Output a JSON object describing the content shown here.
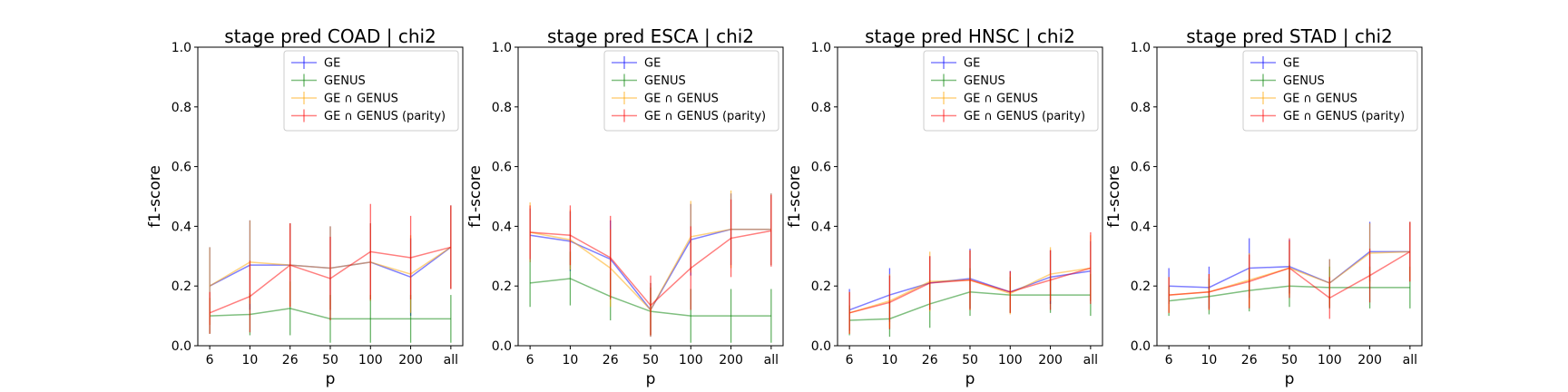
{
  "chart_data": [
    {
      "type": "line",
      "title": "stage pred COAD | chi2",
      "xlabel": "p",
      "ylabel": "f1-score",
      "categories": [
        "6",
        "10",
        "26",
        "50",
        "100",
        "200",
        "all"
      ],
      "ylim": [
        0,
        1
      ],
      "yticks": [
        "0.0",
        "0.2",
        "0.4",
        "0.6",
        "0.8",
        "1.0"
      ],
      "legend": "top-right",
      "grid": false,
      "series": [
        {
          "name": "GE",
          "color": "#0000ff",
          "values": [
            0.2,
            0.27,
            0.27,
            0.26,
            0.28,
            0.23,
            0.33
          ],
          "err": [
            0.13,
            0.15,
            0.14,
            0.14,
            0.13,
            0.13,
            0.14
          ]
        },
        {
          "name": "GENUS",
          "color": "#008000",
          "values": [
            0.1,
            0.105,
            0.125,
            0.09,
            0.09,
            0.09,
            0.09
          ],
          "err": [
            0.06,
            0.07,
            0.09,
            0.08,
            0.08,
            0.08,
            0.08
          ]
        },
        {
          "name": "GE ∩ GENUS",
          "color": "#ffa500",
          "values": [
            0.2,
            0.28,
            0.27,
            0.26,
            0.28,
            0.24,
            0.33
          ],
          "err": [
            0.13,
            0.14,
            0.14,
            0.14,
            0.13,
            0.13,
            0.14
          ]
        },
        {
          "name": "GE ∩ GENUS (parity)",
          "color": "#ff0000",
          "values": [
            0.11,
            0.165,
            0.27,
            0.225,
            0.315,
            0.295,
            0.33
          ],
          "err": [
            0.07,
            0.12,
            0.14,
            0.14,
            0.16,
            0.14,
            0.14
          ]
        }
      ]
    },
    {
      "type": "line",
      "title": "stage pred ESCA | chi2",
      "xlabel": "p",
      "ylabel": "f1-score",
      "categories": [
        "6",
        "10",
        "26",
        "50",
        "100",
        "200",
        "all"
      ],
      "ylim": [
        0,
        1
      ],
      "yticks": [
        "0.0",
        "0.2",
        "0.4",
        "0.6",
        "0.8",
        "1.0"
      ],
      "legend": "top-right",
      "grid": false,
      "series": [
        {
          "name": "GE",
          "color": "#0000ff",
          "values": [
            0.37,
            0.35,
            0.29,
            0.12,
            0.355,
            0.39,
            0.39
          ],
          "err": [
            0.09,
            0.1,
            0.13,
            0.09,
            0.12,
            0.12,
            0.12
          ]
        },
        {
          "name": "GENUS",
          "color": "#008000",
          "values": [
            0.21,
            0.225,
            0.165,
            0.115,
            0.1,
            0.1,
            0.1
          ],
          "err": [
            0.08,
            0.09,
            0.08,
            0.08,
            0.09,
            0.09,
            0.09
          ]
        },
        {
          "name": "GE ∩ GENUS",
          "color": "#ffa500",
          "values": [
            0.38,
            0.355,
            0.26,
            0.12,
            0.365,
            0.39,
            0.39
          ],
          "err": [
            0.1,
            0.1,
            0.13,
            0.09,
            0.12,
            0.13,
            0.12
          ]
        },
        {
          "name": "GE ∩ GENUS (parity)",
          "color": "#ff0000",
          "values": [
            0.38,
            0.37,
            0.295,
            0.135,
            0.26,
            0.36,
            0.385
          ],
          "err": [
            0.09,
            0.1,
            0.14,
            0.1,
            0.14,
            0.13,
            0.12
          ]
        }
      ]
    },
    {
      "type": "line",
      "title": "stage pred HNSC | chi2",
      "xlabel": "p",
      "ylabel": "f1-score",
      "categories": [
        "6",
        "10",
        "26",
        "50",
        "100",
        "200",
        "all"
      ],
      "ylim": [
        0,
        1
      ],
      "yticks": [
        "0.0",
        "0.2",
        "0.4",
        "0.6",
        "0.8",
        "1.0"
      ],
      "legend": "top-right",
      "grid": false,
      "series": [
        {
          "name": "GE",
          "color": "#0000ff",
          "values": [
            0.12,
            0.17,
            0.21,
            0.225,
            0.18,
            0.23,
            0.25
          ],
          "err": [
            0.07,
            0.09,
            0.09,
            0.1,
            0.07,
            0.09,
            0.1
          ]
        },
        {
          "name": "GENUS",
          "color": "#008000",
          "values": [
            0.085,
            0.09,
            0.14,
            0.18,
            0.17,
            0.17,
            0.17
          ],
          "err": [
            0.05,
            0.06,
            0.08,
            0.08,
            0.06,
            0.06,
            0.07
          ]
        },
        {
          "name": "GE ∩ GENUS",
          "color": "#ffa500",
          "values": [
            0.11,
            0.15,
            0.215,
            0.22,
            0.175,
            0.24,
            0.26
          ],
          "err": [
            0.07,
            0.09,
            0.1,
            0.1,
            0.07,
            0.09,
            0.11
          ]
        },
        {
          "name": "GE ∩ GENUS (parity)",
          "color": "#ff0000",
          "values": [
            0.11,
            0.145,
            0.21,
            0.22,
            0.18,
            0.22,
            0.26
          ],
          "err": [
            0.07,
            0.09,
            0.09,
            0.1,
            0.07,
            0.1,
            0.12
          ]
        }
      ]
    },
    {
      "type": "line",
      "title": "stage pred STAD | chi2",
      "xlabel": "p",
      "ylabel": "f1-score",
      "categories": [
        "6",
        "10",
        "26",
        "50",
        "100",
        "200",
        "all"
      ],
      "ylim": [
        0,
        1
      ],
      "yticks": [
        "0.0",
        "0.2",
        "0.4",
        "0.6",
        "0.8",
        "1.0"
      ],
      "legend": "top-right",
      "grid": false,
      "series": [
        {
          "name": "GE",
          "color": "#0000ff",
          "values": [
            0.2,
            0.195,
            0.26,
            0.265,
            0.21,
            0.315,
            0.315
          ],
          "err": [
            0.06,
            0.07,
            0.1,
            0.09,
            0.08,
            0.1,
            0.1
          ]
        },
        {
          "name": "GENUS",
          "color": "#008000",
          "values": [
            0.15,
            0.165,
            0.185,
            0.2,
            0.195,
            0.195,
            0.195
          ],
          "err": [
            0.05,
            0.06,
            0.07,
            0.07,
            0.07,
            0.07,
            0.07
          ]
        },
        {
          "name": "GE ∩ GENUS",
          "color": "#ffa500",
          "values": [
            0.17,
            0.18,
            0.22,
            0.26,
            0.21,
            0.31,
            0.315
          ],
          "err": [
            0.06,
            0.06,
            0.09,
            0.09,
            0.08,
            0.1,
            0.1
          ]
        },
        {
          "name": "GE ∩ GENUS (parity)",
          "color": "#ff0000",
          "values": [
            0.17,
            0.18,
            0.215,
            0.26,
            0.16,
            0.235,
            0.315
          ],
          "err": [
            0.06,
            0.06,
            0.09,
            0.1,
            0.07,
            0.09,
            0.1
          ]
        }
      ]
    }
  ]
}
